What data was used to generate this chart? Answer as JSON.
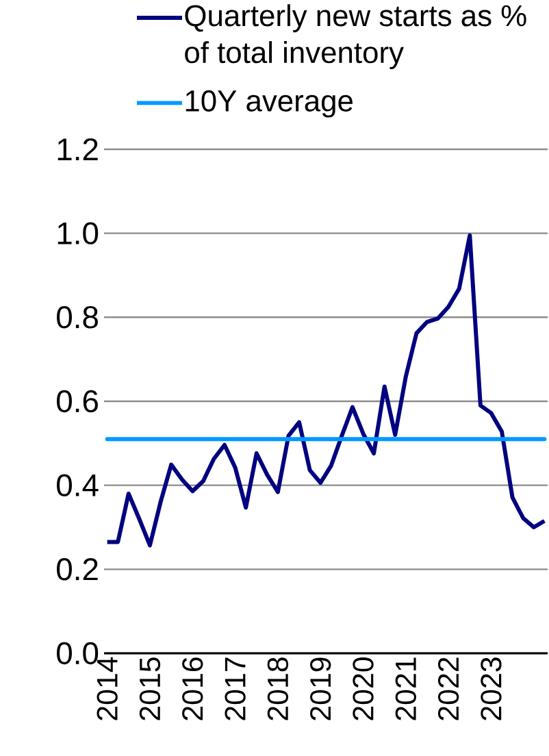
{
  "chart_data": {
    "type": "line",
    "categories": [
      "2014",
      null,
      null,
      null,
      "2015",
      null,
      null,
      null,
      "2016",
      null,
      null,
      null,
      "2017",
      null,
      null,
      null,
      "2018",
      null,
      null,
      null,
      "2019",
      null,
      null,
      null,
      "2020",
      null,
      null,
      null,
      "2021",
      null,
      null,
      null,
      "2022",
      null,
      null,
      null,
      "2023",
      null,
      null,
      null,
      null,
      null
    ],
    "series": [
      {
        "name": "Quarterly new starts as % of total inventory",
        "color": "#000080",
        "values": [
          0.265,
          0.265,
          0.38,
          0.32,
          0.257,
          0.36,
          0.449,
          0.414,
          0.386,
          0.41,
          0.463,
          0.496,
          0.442,
          0.347,
          0.476,
          0.425,
          0.384,
          0.518,
          0.55,
          0.436,
          0.406,
          0.447,
          0.518,
          0.586,
          0.523,
          0.476,
          0.635,
          0.52,
          0.659,
          0.762,
          0.789,
          0.797,
          0.825,
          0.868,
          0.995,
          0.59,
          0.572,
          0.528,
          0.371,
          0.322,
          0.3,
          0.315
        ]
      }
    ],
    "ref_lines": [
      {
        "axis": "y",
        "value": 0.51,
        "label": "10Y average",
        "color": "#0099ff"
      }
    ],
    "ylim": [
      0,
      1.2
    ],
    "yticks": [
      {
        "value": 0,
        "label": "0.0"
      },
      0.2,
      0.4,
      0.6,
      0.8,
      {
        "value": 1,
        "label": "1.0"
      },
      1.2
    ],
    "grid": "y",
    "legend": "top",
    "marker": "none",
    "line_style": "solid"
  }
}
